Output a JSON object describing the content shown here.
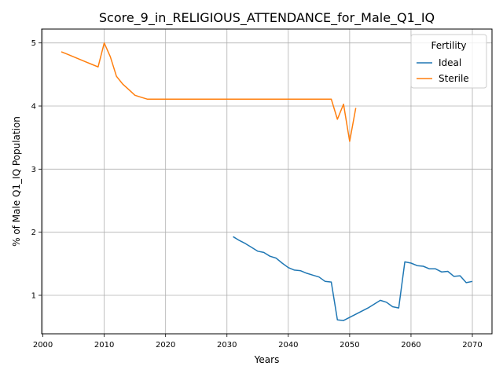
{
  "chart_data": {
    "type": "line",
    "title": "Score_9_in_RELIGIOUS_ATTENDANCE_for_Male_Q1_IQ",
    "xlabel": "Years",
    "ylabel": "% of Male Q1_IQ Population",
    "xlim": [
      1999.8,
      2073.2
    ],
    "ylim": [
      0.39,
      5.22
    ],
    "xticks": [
      2000,
      2010,
      2020,
      2030,
      2040,
      2050,
      2060,
      2070
    ],
    "yticks": [
      1,
      2,
      3,
      4,
      5
    ],
    "grid": true,
    "legend": {
      "title": "Fertility",
      "placement": "top-right"
    },
    "series": [
      {
        "name": "Ideal",
        "color": "#1f77b4",
        "x": [
          2031,
          2032,
          2033,
          2034,
          2035,
          2036,
          2037,
          2038,
          2039,
          2040,
          2041,
          2042,
          2043,
          2044,
          2045,
          2046,
          2047,
          2048,
          2049,
          2050,
          2051,
          2052,
          2053,
          2054,
          2055,
          2056,
          2057,
          2058,
          2059,
          2060,
          2061,
          2062,
          2063,
          2064,
          2065,
          2066,
          2067,
          2068,
          2069,
          2070
        ],
        "y": [
          1.93,
          1.87,
          1.82,
          1.76,
          1.7,
          1.68,
          1.62,
          1.59,
          1.51,
          1.44,
          1.4,
          1.39,
          1.35,
          1.32,
          1.29,
          1.22,
          1.21,
          0.61,
          0.6,
          0.65,
          0.7,
          0.75,
          0.8,
          0.86,
          0.92,
          0.89,
          0.82,
          0.8,
          1.53,
          1.51,
          1.47,
          1.46,
          1.42,
          1.42,
          1.37,
          1.38,
          1.3,
          1.31,
          1.2,
          1.22
        ]
      },
      {
        "name": "Sterile",
        "color": "#ff7f0e",
        "x": [
          2003,
          2004,
          2005,
          2006,
          2007,
          2008,
          2009,
          2010,
          2011,
          2012,
          2013,
          2014,
          2015,
          2016,
          2017,
          2018,
          2019,
          2020,
          2021,
          2022,
          2023,
          2024,
          2025,
          2026,
          2027,
          2028,
          2029,
          2030,
          2031,
          2032,
          2033,
          2034,
          2035,
          2036,
          2037,
          2038,
          2039,
          2040,
          2041,
          2042,
          2043,
          2044,
          2045,
          2046,
          2047,
          2048,
          2049,
          2050,
          2051
        ],
        "y": [
          4.86,
          4.82,
          4.78,
          4.74,
          4.7,
          4.66,
          4.62,
          5.0,
          4.78,
          4.47,
          4.35,
          4.26,
          4.17,
          4.14,
          4.11,
          4.11,
          4.11,
          4.11,
          4.11,
          4.11,
          4.11,
          4.11,
          4.11,
          4.11,
          4.11,
          4.11,
          4.11,
          4.11,
          4.11,
          4.11,
          4.11,
          4.11,
          4.11,
          4.11,
          4.11,
          4.11,
          4.11,
          4.11,
          4.11,
          4.11,
          4.11,
          4.11,
          4.11,
          4.11,
          4.11,
          3.79,
          4.03,
          3.44,
          3.97
        ]
      }
    ]
  }
}
